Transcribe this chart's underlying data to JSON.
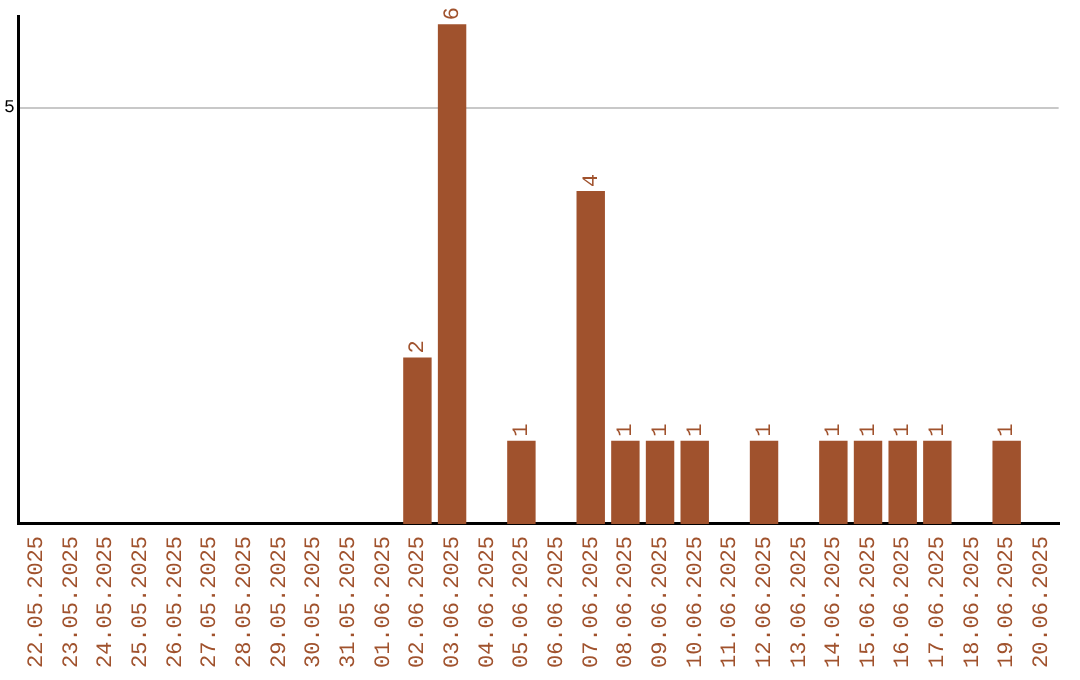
{
  "chart_data": {
    "type": "bar",
    "categories": [
      "22.05.2025",
      "23.05.2025",
      "24.05.2025",
      "25.05.2025",
      "26.05.2025",
      "27.05.2025",
      "28.05.2025",
      "29.05.2025",
      "30.05.2025",
      "31.05.2025",
      "01.06.2025",
      "02.06.2025",
      "03.06.2025",
      "04.06.2025",
      "05.06.2025",
      "06.06.2025",
      "07.06.2025",
      "08.06.2025",
      "09.06.2025",
      "10.06.2025",
      "11.06.2025",
      "12.06.2025",
      "13.06.2025",
      "14.06.2025",
      "15.06.2025",
      "16.06.2025",
      "17.06.2025",
      "18.06.2025",
      "19.06.2025",
      "20.06.2025"
    ],
    "values": [
      0,
      0,
      0,
      0,
      0,
      0,
      0,
      0,
      0,
      0,
      0,
      2,
      6,
      0,
      1,
      0,
      4,
      1,
      1,
      1,
      0,
      1,
      0,
      1,
      1,
      1,
      1,
      0,
      1,
      0
    ],
    "value_labels": [
      null,
      null,
      null,
      null,
      null,
      null,
      null,
      null,
      null,
      null,
      null,
      "2",
      "6",
      null,
      "1",
      null,
      "4",
      "1",
      "1",
      "1",
      null,
      "1",
      null,
      "1",
      "1",
      "1",
      "1",
      null,
      "1",
      null
    ],
    "color": "#a0522d",
    "ylim": [
      0,
      6.1
    ],
    "yticks": [
      5
    ],
    "grid": "y",
    "legend": false
  }
}
